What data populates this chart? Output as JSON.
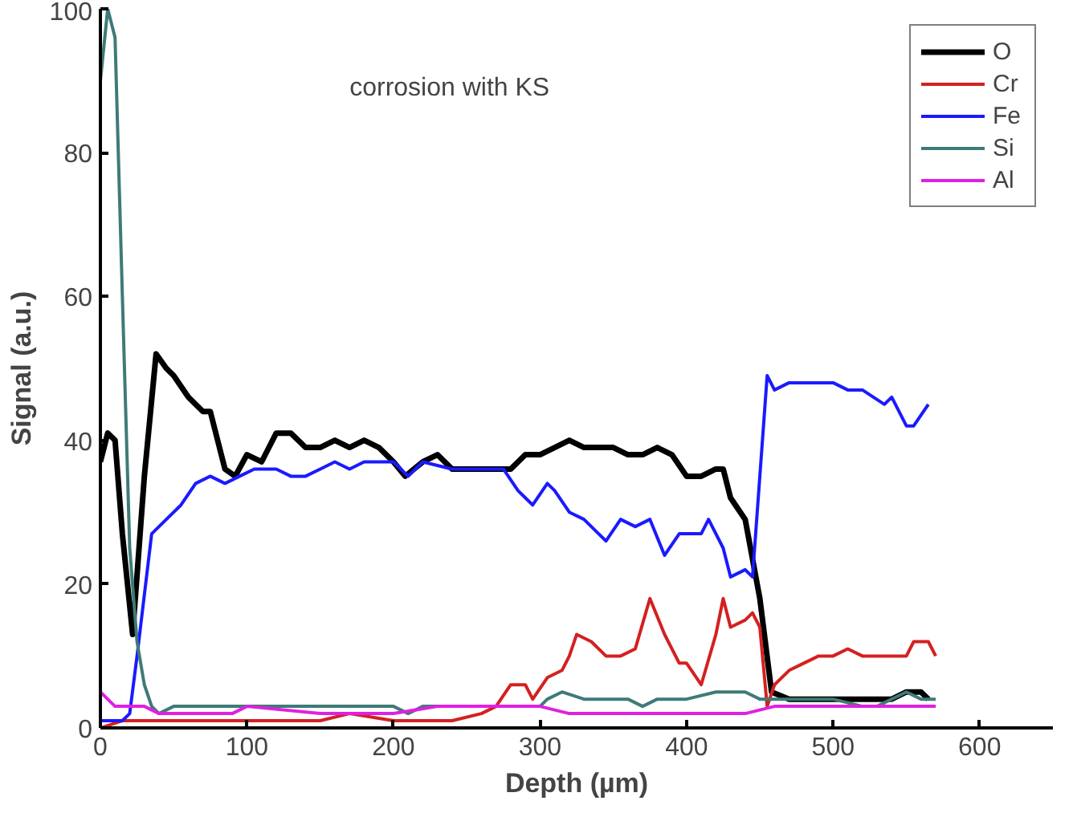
{
  "chart_data": {
    "type": "line",
    "xlabel": "Depth (µm)",
    "ylabel": "Signal (a.u.)",
    "annotations": [
      "corrosion with KS"
    ],
    "xlim": [
      0,
      650
    ],
    "ylim": [
      0,
      100
    ],
    "xticks": [
      0,
      100,
      200,
      300,
      400,
      500,
      600
    ],
    "yticks": [
      0,
      20,
      40,
      60,
      80,
      100
    ],
    "grid": false,
    "legend": "top right",
    "marker": "none",
    "line_style": "solid",
    "series": [
      {
        "name": "O",
        "color": "#000000",
        "x": [
          0,
          5,
          10,
          15,
          22,
          30,
          38,
          45,
          50,
          60,
          70,
          75,
          85,
          92,
          100,
          110,
          120,
          130,
          140,
          150,
          160,
          170,
          180,
          190,
          200,
          208,
          220,
          230,
          240,
          260,
          280,
          290,
          300,
          310,
          320,
          330,
          340,
          350,
          360,
          370,
          380,
          390,
          400,
          410,
          420,
          425,
          430,
          440,
          450,
          458,
          470,
          480,
          490,
          500,
          520,
          540,
          550,
          560,
          565
        ],
        "values": [
          37,
          41,
          40,
          27,
          13,
          35,
          52,
          50,
          49,
          46,
          44,
          44,
          36,
          35,
          38,
          37,
          41,
          41,
          39,
          39,
          40,
          39,
          40,
          39,
          37,
          35,
          37,
          38,
          36,
          36,
          36,
          38,
          38,
          39,
          40,
          39,
          39,
          39,
          38,
          38,
          39,
          38,
          35,
          35,
          36,
          36,
          32,
          29,
          18,
          5,
          4,
          4,
          4,
          4,
          4,
          4,
          5,
          5,
          4
        ]
      },
      {
        "name": "Cr",
        "color": "#d42020",
        "x": [
          0,
          15,
          50,
          100,
          150,
          170,
          200,
          240,
          260,
          270,
          280,
          290,
          295,
          305,
          315,
          320,
          325,
          335,
          345,
          355,
          365,
          375,
          385,
          395,
          400,
          410,
          420,
          425,
          430,
          440,
          445,
          450,
          455,
          460,
          470,
          480,
          490,
          500,
          510,
          520,
          550,
          555,
          565,
          570
        ],
        "values": [
          0,
          1,
          1,
          1,
          1,
          2,
          1,
          1,
          2,
          3,
          6,
          6,
          4,
          7,
          8,
          10,
          13,
          12,
          10,
          10,
          11,
          18,
          13,
          9,
          9,
          6,
          13,
          18,
          14,
          15,
          16,
          14,
          3,
          6,
          8,
          9,
          10,
          10,
          11,
          10,
          10,
          12,
          12,
          10
        ]
      },
      {
        "name": "Fe",
        "color": "#1a1aff",
        "x": [
          0,
          15,
          20,
          25,
          35,
          45,
          55,
          65,
          75,
          85,
          95,
          105,
          120,
          130,
          140,
          150,
          160,
          170,
          180,
          190,
          200,
          210,
          220,
          240,
          260,
          275,
          285,
          295,
          305,
          310,
          320,
          330,
          340,
          345,
          355,
          365,
          375,
          385,
          395,
          410,
          415,
          425,
          430,
          440,
          445,
          455,
          460,
          470,
          480,
          500,
          510,
          520,
          535,
          540,
          550,
          555,
          565
        ],
        "values": [
          1,
          1,
          2,
          10,
          27,
          29,
          31,
          34,
          35,
          34,
          35,
          36,
          36,
          35,
          35,
          36,
          37,
          36,
          37,
          37,
          37,
          35,
          37,
          36,
          36,
          36,
          33,
          31,
          34,
          33,
          30,
          29,
          27,
          26,
          29,
          28,
          29,
          24,
          27,
          27,
          29,
          25,
          21,
          22,
          21,
          49,
          47,
          48,
          48,
          48,
          47,
          47,
          45,
          46,
          42,
          42,
          45
        ]
      },
      {
        "name": "Si",
        "color": "#3f7a78",
        "x": [
          0,
          5,
          10,
          15,
          20,
          25,
          30,
          35,
          40,
          50,
          100,
          150,
          200,
          210,
          220,
          300,
          305,
          315,
          330,
          350,
          360,
          370,
          380,
          400,
          420,
          440,
          450,
          500,
          520,
          530,
          540,
          550,
          560,
          570
        ],
        "values": [
          90,
          100,
          96,
          60,
          25,
          12,
          6,
          3,
          2,
          3,
          3,
          3,
          3,
          2,
          3,
          3,
          4,
          5,
          4,
          4,
          4,
          3,
          4,
          4,
          5,
          5,
          4,
          4,
          3,
          3,
          4,
          5,
          4,
          4
        ]
      },
      {
        "name": "Al",
        "color": "#e020e0",
        "x": [
          0,
          10,
          30,
          40,
          50,
          90,
          100,
          150,
          200,
          230,
          300,
          320,
          350,
          400,
          440,
          460,
          570
        ],
        "values": [
          5,
          3,
          3,
          2,
          2,
          2,
          3,
          2,
          2,
          3,
          3,
          2,
          2,
          2,
          2,
          3,
          3
        ]
      }
    ]
  }
}
